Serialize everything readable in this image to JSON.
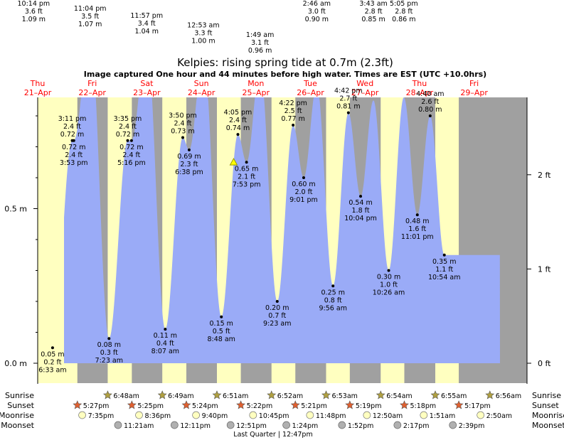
{
  "chart_data": {
    "type": "area",
    "title": "Kelpies: rising  spring tide at 0.7m (2.3ft)",
    "subtitle": "Image captured One hour and 44 minutes before high water. Times are EST (UTC +10.0hrs)",
    "ylabel_left_ticks": [
      "0.0 m",
      "0.5 m"
    ],
    "ylabel_right_ticks": [
      "0 ft",
      "1 ft",
      "2 ft"
    ],
    "ylim_m": [
      0,
      0.82
    ],
    "days": [
      {
        "name": "Thu",
        "date": "21–Apr"
      },
      {
        "name": "Fri",
        "date": "22–Apr"
      },
      {
        "name": "Sat",
        "date": "23–Apr"
      },
      {
        "name": "Sun",
        "date": "24–Apr"
      },
      {
        "name": "Mon",
        "date": "25–Apr"
      },
      {
        "name": "Tue",
        "date": "26–Apr"
      },
      {
        "name": "Wed",
        "date": "27–Apr"
      },
      {
        "name": "Thu",
        "date": "28–Apr"
      },
      {
        "name": "Fri",
        "date": "29–Apr"
      }
    ],
    "tides": [
      {
        "type": "high",
        "t": 70.23,
        "m": "1.09 m",
        "ft": "3.6 ft",
        "time": "10:14 pm",
        "m_val": 1.09
      },
      {
        "type": "low",
        "t": 78.55,
        "m": "0.05 m",
        "ft": "0.2 ft",
        "time": "6:33 am",
        "m_val": 0.05
      },
      {
        "type": "high",
        "t": 87.18,
        "m": "0.72 m",
        "ft": "2.4 ft",
        "time": "3:11 pm",
        "m_val": 0.72
      },
      {
        "type": "low",
        "t": 87.88,
        "m": "0.72 m",
        "ft": "2.4 ft",
        "time": "3:53 pm",
        "m_val": 0.72
      },
      {
        "type": "high",
        "t": 95.07,
        "m": "1.07 m",
        "ft": "3.5 ft",
        "time": "11:04 pm",
        "m_val": 1.07
      },
      {
        "type": "low",
        "t": 103.38,
        "m": "0.08 m",
        "ft": "0.3 ft",
        "time": "7:23 am",
        "m_val": 0.08
      },
      {
        "type": "high",
        "t": 111.58,
        "m": "0.72 m",
        "ft": "2.4 ft",
        "time": "3:35 pm",
        "m_val": 0.72
      },
      {
        "type": "low",
        "t": 113.27,
        "m": "0.72 m",
        "ft": "2.4 ft",
        "time": "5:16 pm",
        "m_val": 0.72
      },
      {
        "type": "high",
        "t": 119.95,
        "m": "1.04 m",
        "ft": "3.4 ft",
        "time": "11:57 pm",
        "m_val": 1.04
      },
      {
        "type": "low",
        "t": 128.12,
        "m": "0.11 m",
        "ft": "0.4 ft",
        "time": "8:07 am",
        "m_val": 0.11
      },
      {
        "type": "high",
        "t": 135.83,
        "m": "0.73 m",
        "ft": "2.4 ft",
        "time": "3:50 pm",
        "m_val": 0.73
      },
      {
        "type": "low",
        "t": 138.63,
        "m": "0.69 m",
        "ft": "2.3 ft",
        "time": "6:38 pm",
        "m_val": 0.69
      },
      {
        "type": "high",
        "t": 144.88,
        "m": "1.00 m",
        "ft": "3.3 ft",
        "time": "12:53 am",
        "m_val": 1.0
      },
      {
        "type": "low",
        "t": 152.8,
        "m": "0.15 m",
        "ft": "0.5 ft",
        "time": "8:48 am",
        "m_val": 0.15
      },
      {
        "type": "high",
        "t": 160.08,
        "m": "0.74 m",
        "ft": "2.4 ft",
        "time": "4:05 pm",
        "m_val": 0.74
      },
      {
        "type": "low",
        "t": 163.88,
        "m": "0.65 m",
        "ft": "2.1 ft",
        "time": "7:53 pm",
        "m_val": 0.65
      },
      {
        "type": "high",
        "t": 169.82,
        "m": "0.96 m",
        "ft": "3.1 ft",
        "time": "1:49 am",
        "m_val": 0.96
      },
      {
        "type": "low",
        "t": 177.38,
        "m": "0.20 m",
        "ft": "0.7 ft",
        "time": "9:23 am",
        "m_val": 0.2
      },
      {
        "type": "high",
        "t": 184.37,
        "m": "0.77 m",
        "ft": "2.5 ft",
        "time": "4:22 pm",
        "m_val": 0.77
      },
      {
        "type": "low",
        "t": 189.02,
        "m": "0.60 m",
        "ft": "2.0 ft",
        "time": "9:01 pm",
        "m_val": 0.6
      },
      {
        "type": "high",
        "t": 194.77,
        "m": "0.90 m",
        "ft": "3.0 ft",
        "time": "2:46 am",
        "m_val": 0.9
      },
      {
        "type": "low",
        "t": 201.93,
        "m": "0.25 m",
        "ft": "0.8 ft",
        "time": "9:56 am",
        "m_val": 0.25
      },
      {
        "type": "high",
        "t": 208.7,
        "m": "0.81 m",
        "ft": "2.7 ft",
        "time": "4:42 pm",
        "m_val": 0.81
      },
      {
        "type": "low",
        "t": 214.07,
        "m": "0.54 m",
        "ft": "1.8 ft",
        "time": "10:04 pm",
        "m_val": 0.54
      },
      {
        "type": "high",
        "t": 219.72,
        "m": "0.85 m",
        "ft": "2.8 ft",
        "time": "3:43 am",
        "m_val": 0.85
      },
      {
        "type": "low",
        "t": 226.43,
        "m": "0.30 m",
        "ft": "1.0 ft",
        "time": "10:26 am",
        "m_val": 0.3
      },
      {
        "type": "high",
        "t": 233.08,
        "m": "0.86 m",
        "ft": "2.8 ft",
        "time": "5:05 pm",
        "m_val": 0.86
      },
      {
        "type": "low",
        "t": 239.02,
        "m": "0.48 m",
        "ft": "1.6 ft",
        "time": "11:01 pm",
        "m_val": 0.48
      },
      {
        "type": "high",
        "t": 244.67,
        "m": "0.80 m",
        "ft": "2.6 ft",
        "time": "4:40 am",
        "m_val": 0.8
      },
      {
        "type": "low",
        "t": 250.9,
        "m": "0.35 m",
        "ft": "1.1 ft",
        "time": "10:54 am",
        "m_val": 0.35
      }
    ],
    "now_marker_t": 158.2,
    "sunrise": [
      "6:48am",
      "6:49am",
      "6:51am",
      "6:52am",
      "6:53am",
      "6:54am",
      "6:55am",
      "6:56am"
    ],
    "sunset": [
      "5:27pm",
      "5:25pm",
      "5:24pm",
      "5:22pm",
      "5:21pm",
      "5:19pm",
      "5:18pm",
      "5:17pm"
    ],
    "moonrise": [
      "7:35pm",
      "8:36pm",
      "9:40pm",
      "10:45pm",
      "11:48pm",
      "12:50am",
      "1:51am",
      "2:50am"
    ],
    "moonset": [
      "11:21am",
      "12:11pm",
      "12:51pm",
      "1:24pm",
      "1:52pm",
      "2:17pm",
      "2:39pm"
    ],
    "row_labels": {
      "sunrise": "Sunrise",
      "sunset": "Sunset",
      "moonrise": "Moonrise",
      "moonset": "Moonset"
    },
    "moon_phase": "Last Quarter | 12:47pm",
    "colors": {
      "water": "#9aabf7",
      "day": "#ffffc0",
      "night": "#a0a0a0",
      "day_text": "#ff0000"
    }
  }
}
